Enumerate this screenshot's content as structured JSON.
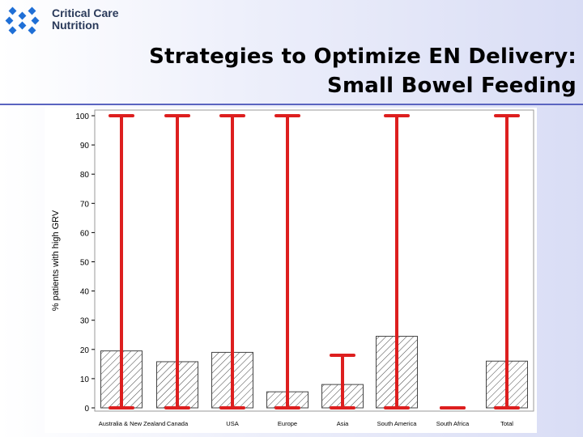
{
  "header": {
    "brand_line1": "Critical Care",
    "brand_line2": "Nutrition",
    "title_line1": "Strategies to Optimize EN Delivery:",
    "title_line2": "Small Bowel Feeding"
  },
  "icons": {
    "logo": "critical-care-nutrition-logo"
  },
  "colors": {
    "accent_rule": "#5a64c0",
    "error_bar": "#dd1f1f",
    "logo_blue": "#1f6fd6",
    "bar_hatch": "#444444"
  },
  "chart_data": {
    "type": "bar",
    "ylabel": "% patients with high GRV",
    "xlabel": "",
    "ylim": [
      0,
      100
    ],
    "yticks": [
      0,
      10,
      20,
      30,
      40,
      50,
      60,
      70,
      80,
      90,
      100
    ],
    "categories": [
      "Australia & New Zealand",
      "Canada",
      "USA",
      "Europe",
      "Asia",
      "South America",
      "South Africa",
      "Total"
    ],
    "values": [
      19.5,
      15.8,
      19,
      5.5,
      8,
      24.5,
      0,
      16
    ],
    "error_low": [
      0,
      0,
      0,
      0,
      0,
      0,
      0,
      0
    ],
    "error_high": [
      100,
      100,
      100,
      100,
      18,
      100,
      0,
      100
    ],
    "pattern": "diagonal-hatch",
    "grid": false
  }
}
